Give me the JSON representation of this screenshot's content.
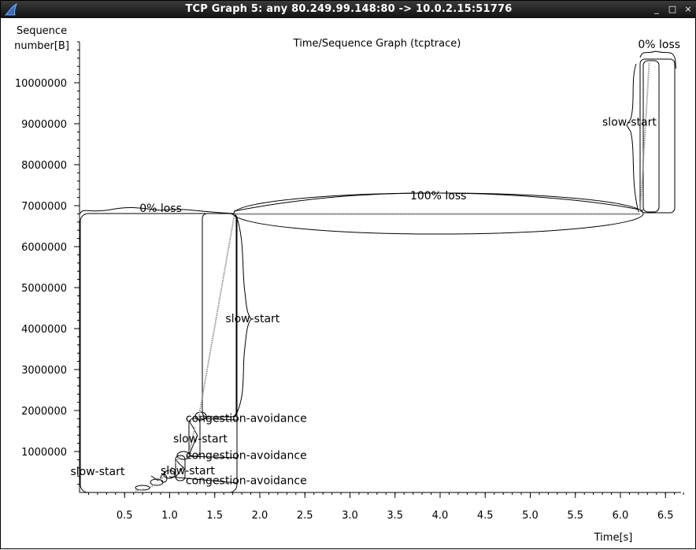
{
  "window": {
    "title": "TCP Graph 5: any 80.249.99.148:80 -> 10.0.2.15:51776",
    "minimize_glyph": "_",
    "maximize_glyph": "□",
    "close_glyph": "×",
    "icon": "wireshark-fin-icon"
  },
  "chart_data": {
    "type": "scatter",
    "title": "Time/Sequence Graph (tcptrace)",
    "ylabel": "Sequence number[B]",
    "ylabel_lines": [
      "Sequence",
      "number[B]"
    ],
    "xlabel": "Time[s]",
    "xlim": [
      0.0,
      6.75
    ],
    "ylim": [
      0,
      11000000
    ],
    "x_ticks": [
      {
        "v": 0.5,
        "label": "0.5"
      },
      {
        "v": 1.0,
        "label": "1.0"
      },
      {
        "v": 1.5,
        "label": "1.5"
      },
      {
        "v": 2.0,
        "label": "2.0"
      },
      {
        "v": 2.5,
        "label": "2.5"
      },
      {
        "v": 3.0,
        "label": "3.0"
      },
      {
        "v": 3.5,
        "label": "3.5"
      },
      {
        "v": 4.0,
        "label": "4.0"
      },
      {
        "v": 4.5,
        "label": "4.5"
      },
      {
        "v": 5.0,
        "label": "5.0"
      },
      {
        "v": 5.5,
        "label": "5.5"
      },
      {
        "v": 6.0,
        "label": "6.0"
      },
      {
        "v": 6.5,
        "label": "6.5"
      }
    ],
    "y_ticks": [
      {
        "v": 1000000,
        "label": "1000000"
      },
      {
        "v": 2000000,
        "label": "2000000"
      },
      {
        "v": 3000000,
        "label": "3000000"
      },
      {
        "v": 4000000,
        "label": "4000000"
      },
      {
        "v": 5000000,
        "label": "5000000"
      },
      {
        "v": 6000000,
        "label": "6000000"
      },
      {
        "v": 7000000,
        "label": "7000000"
      },
      {
        "v": 8000000,
        "label": "8000000"
      },
      {
        "v": 9000000,
        "label": "9000000"
      },
      {
        "v": 10000000,
        "label": "10000000"
      }
    ],
    "grid": false,
    "series": [
      {
        "color": "#9a9a9a",
        "segments": [
          [
            [
              0.62,
              40000
            ],
            [
              0.72,
              80000
            ]
          ],
          [
            [
              0.78,
              120000
            ],
            [
              0.85,
              200000
            ]
          ],
          [
            [
              0.88,
              280000
            ],
            [
              0.94,
              400000
            ]
          ],
          [
            [
              0.98,
              480000
            ],
            [
              1.03,
              620000
            ]
          ],
          [
            [
              1.06,
              720000
            ],
            [
              1.12,
              900000
            ]
          ],
          [
            [
              1.22,
              1000000
            ],
            [
              1.28,
              1600000
            ]
          ],
          [
            [
              1.32,
              1800000
            ],
            [
              1.72,
              6800000
            ]
          ],
          [
            [
              1.72,
              6800000
            ],
            [
              6.22,
              6800000
            ]
          ],
          [
            [
              6.22,
              6850000
            ],
            [
              6.32,
              10500000
            ]
          ]
        ]
      }
    ],
    "annotations": [
      {
        "text": "0% loss",
        "x": 0.9,
        "y": 6850000
      },
      {
        "text": "100% loss",
        "x": 3.98,
        "y": 7150000
      },
      {
        "text": "0% loss",
        "x": 6.43,
        "y": 10850000
      },
      {
        "text": "slow-start",
        "x": 1.92,
        "y": 4150000
      },
      {
        "text": "slow-start",
        "x": 6.1,
        "y": 8950000
      },
      {
        "text": "slow-start",
        "x": 1.34,
        "y": 1220000
      },
      {
        "text": "slow-start",
        "x": 1.2,
        "y": 440000
      },
      {
        "text": "slow-start",
        "x": 0.2,
        "y": 420000
      },
      {
        "text": "congestion-avoidance",
        "x": 1.85,
        "y": 1720000
      },
      {
        "text": "congestion-avoidance",
        "x": 1.85,
        "y": 820000
      },
      {
        "text": "congestion-avoidance",
        "x": 1.85,
        "y": 200000
      }
    ]
  }
}
